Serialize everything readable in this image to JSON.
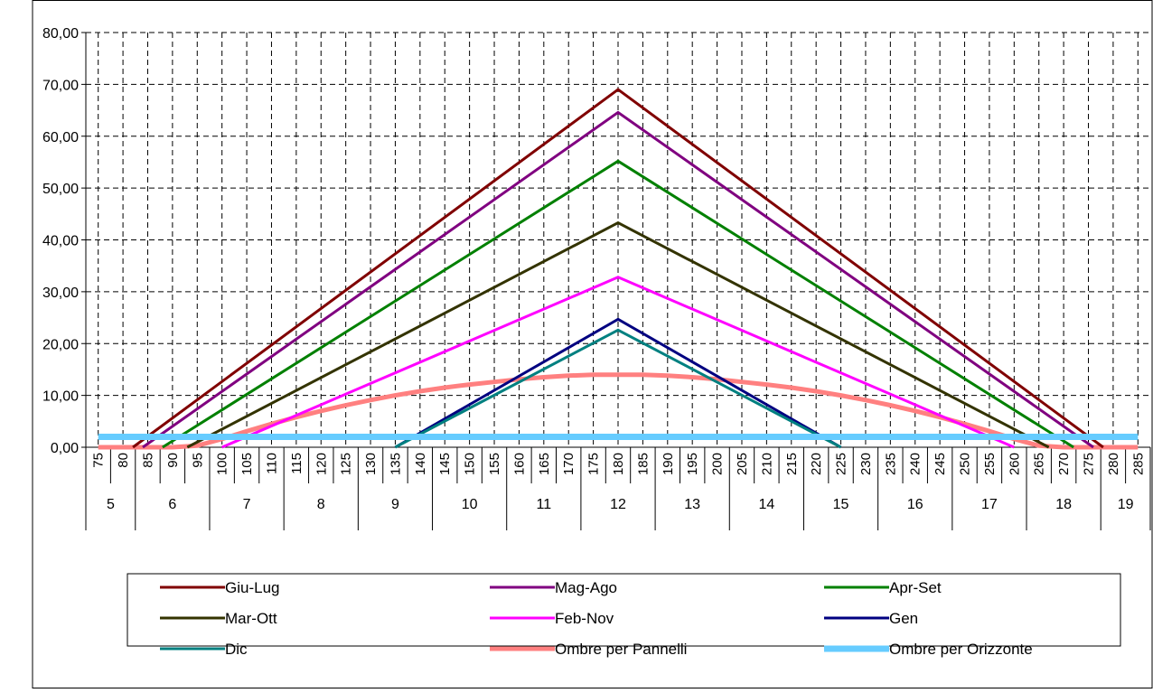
{
  "chart_data": {
    "type": "line",
    "title": "",
    "xlabel": "",
    "ylabel": "",
    "x": [
      75,
      80,
      85,
      90,
      95,
      100,
      105,
      110,
      115,
      120,
      125,
      130,
      135,
      140,
      145,
      150,
      155,
      160,
      165,
      170,
      175,
      180,
      185,
      190,
      195,
      200,
      205,
      210,
      215,
      220,
      225,
      230,
      235,
      240,
      245,
      250,
      255,
      260,
      265,
      270,
      275,
      280,
      285
    ],
    "hours": [
      {
        "label": "5",
        "from": 75,
        "to": 80
      },
      {
        "label": "6",
        "from": 85,
        "to": 95
      },
      {
        "label": "7",
        "from": 100,
        "to": 110
      },
      {
        "label": "8",
        "from": 115,
        "to": 125
      },
      {
        "label": "9",
        "from": 130,
        "to": 140
      },
      {
        "label": "10",
        "from": 145,
        "to": 155
      },
      {
        "label": "11",
        "from": 160,
        "to": 170
      },
      {
        "label": "12",
        "from": 175,
        "to": 185
      },
      {
        "label": "13",
        "from": 190,
        "to": 200
      },
      {
        "label": "14",
        "from": 205,
        "to": 215
      },
      {
        "label": "15",
        "from": 220,
        "to": 230
      },
      {
        "label": "16",
        "from": 235,
        "to": 245
      },
      {
        "label": "17",
        "from": 250,
        "to": 260
      },
      {
        "label": "18",
        "from": 265,
        "to": 275
      },
      {
        "label": "19",
        "from": 280,
        "to": 285
      }
    ],
    "ylim": [
      0,
      80
    ],
    "yticks": [
      "0,00",
      "10,00",
      "20,00",
      "30,00",
      "40,00",
      "50,00",
      "60,00",
      "70,00",
      "80,00"
    ],
    "grid": true,
    "legend_position": "bottom",
    "series": [
      {
        "name": "Giu-Lug",
        "color": "#800000",
        "width": 3,
        "points": [
          [
            82,
            0
          ],
          [
            180,
            69
          ],
          [
            278,
            0
          ]
        ]
      },
      {
        "name": "Mag-Ago",
        "color": "#800080",
        "width": 3,
        "points": [
          [
            84,
            0
          ],
          [
            180,
            64.6
          ],
          [
            276,
            0
          ]
        ]
      },
      {
        "name": "Apr-Set",
        "color": "#008000",
        "width": 3,
        "points": [
          [
            88,
            0
          ],
          [
            180,
            55.2
          ],
          [
            272,
            0
          ]
        ]
      },
      {
        "name": "Mar-Ott",
        "color": "#333300",
        "width": 3,
        "points": [
          [
            93,
            0
          ],
          [
            180,
            43.3
          ],
          [
            267,
            0
          ]
        ]
      },
      {
        "name": "Feb-Nov",
        "color": "#ff00ff",
        "width": 3,
        "points": [
          [
            100,
            0
          ],
          [
            180,
            32.8
          ],
          [
            260,
            0
          ]
        ]
      },
      {
        "name": "Gen",
        "color": "#000080",
        "width": 3,
        "points": [
          [
            135,
            0
          ],
          [
            180,
            24.7
          ],
          [
            225,
            0
          ]
        ]
      },
      {
        "name": "Dic",
        "color": "#008080",
        "width": 3,
        "points": [
          [
            135,
            0
          ],
          [
            180,
            22.6
          ],
          [
            225,
            0
          ]
        ]
      },
      {
        "name": "Ombre per Pannelli",
        "color": "#ff8080",
        "width": 5,
        "points": [
          [
            75,
            0
          ],
          [
            80,
            0
          ],
          [
            85,
            0
          ],
          [
            90,
            0
          ],
          [
            95,
            0.3
          ],
          [
            100,
            1.6
          ],
          [
            105,
            3.1
          ],
          [
            110,
            4.5
          ],
          [
            115,
            5.8
          ],
          [
            120,
            7.0
          ],
          [
            125,
            8.1
          ],
          [
            130,
            9.1
          ],
          [
            135,
            10.0
          ],
          [
            140,
            10.8
          ],
          [
            145,
            11.5
          ],
          [
            150,
            12.1
          ],
          [
            155,
            12.6
          ],
          [
            160,
            13.1
          ],
          [
            165,
            13.5
          ],
          [
            170,
            13.8
          ],
          [
            175,
            14.0
          ],
          [
            180,
            14.0
          ],
          [
            185,
            14.0
          ],
          [
            190,
            13.8
          ],
          [
            195,
            13.5
          ],
          [
            200,
            13.1
          ],
          [
            205,
            12.6
          ],
          [
            210,
            12.1
          ],
          [
            215,
            11.5
          ],
          [
            220,
            10.8
          ],
          [
            225,
            10.0
          ],
          [
            230,
            9.1
          ],
          [
            235,
            8.1
          ],
          [
            240,
            7.0
          ],
          [
            245,
            5.8
          ],
          [
            250,
            4.5
          ],
          [
            255,
            3.1
          ],
          [
            260,
            1.6
          ],
          [
            265,
            0.3
          ],
          [
            270,
            0
          ],
          [
            275,
            0
          ],
          [
            280,
            0
          ],
          [
            285,
            0
          ]
        ]
      },
      {
        "name": "Ombre per Orizzonte",
        "color": "#66ccff",
        "width": 7,
        "points": [
          [
            75,
            2
          ],
          [
            285,
            2
          ]
        ]
      }
    ]
  }
}
